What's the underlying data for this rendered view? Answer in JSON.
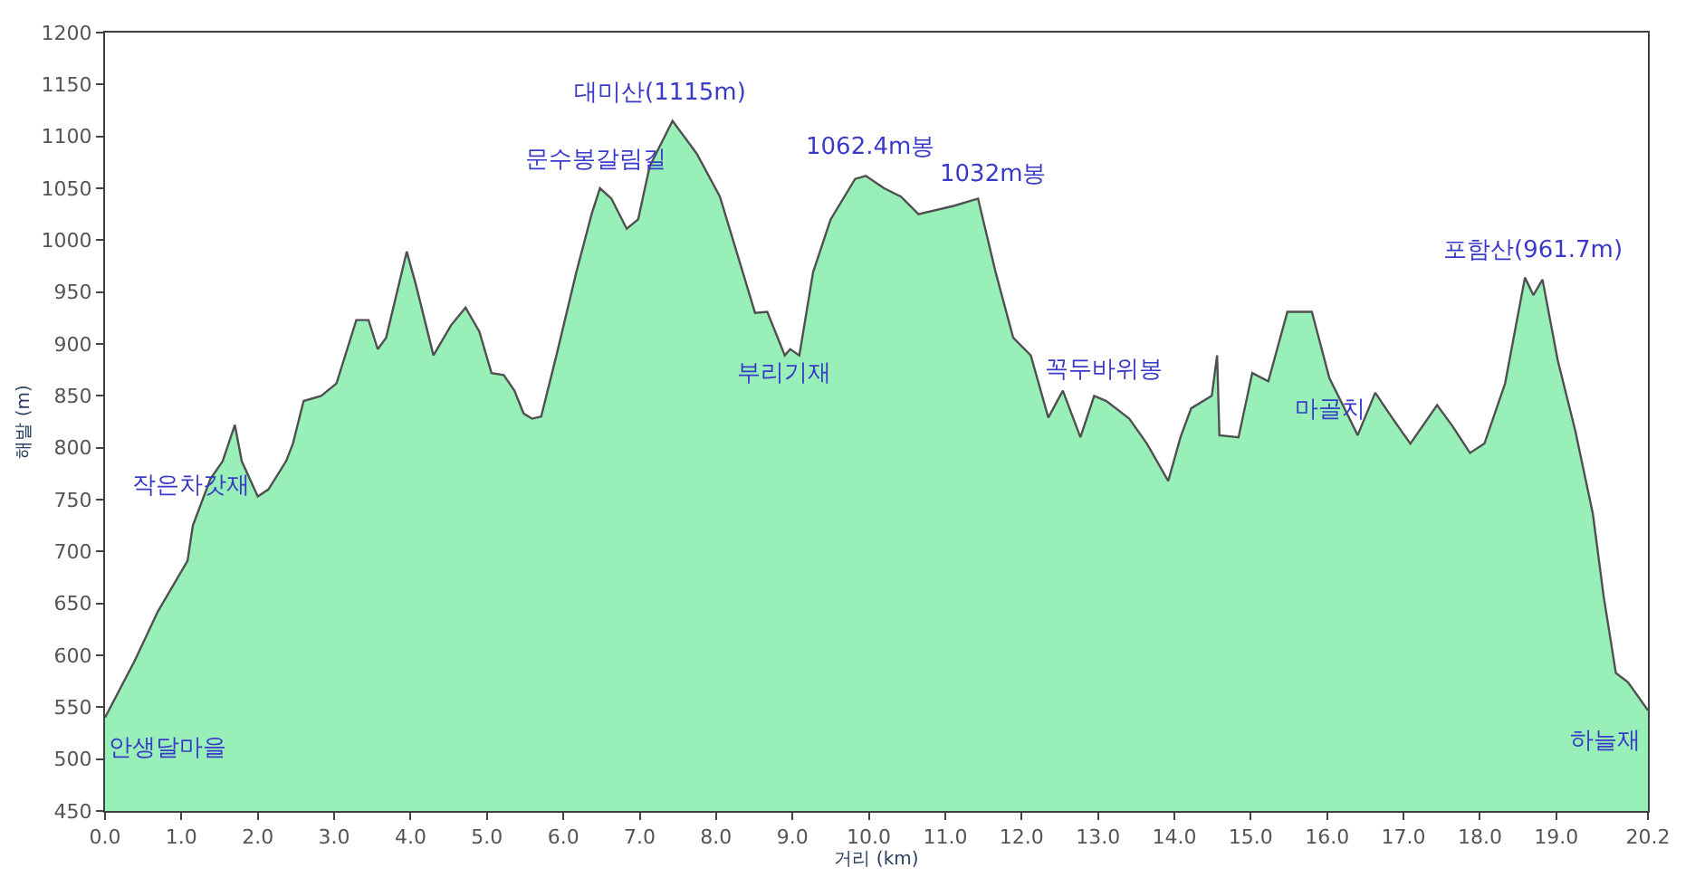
{
  "chart_data": {
    "type": "area",
    "xlabel": "거리 (km)",
    "ylabel": "해발 (m)",
    "x": [
      0.0,
      0.39,
      0.69,
      1.08,
      1.15,
      1.38,
      1.54,
      1.7,
      1.79,
      2.0,
      2.14,
      2.37,
      2.46,
      2.6,
      2.83,
      3.03,
      3.29,
      3.45,
      3.57,
      3.68,
      3.95,
      4.07,
      4.3,
      4.53,
      4.72,
      4.9,
      5.06,
      5.22,
      5.36,
      5.48,
      5.59,
      5.71,
      5.91,
      6.17,
      6.37,
      6.48,
      6.63,
      6.83,
      6.98,
      7.13,
      7.43,
      7.75,
      8.05,
      8.35,
      8.51,
      8.67,
      8.9,
      8.97,
      9.09,
      9.27,
      9.5,
      9.82,
      9.96,
      10.2,
      10.42,
      10.65,
      11.11,
      11.43,
      11.66,
      11.89,
      12.12,
      12.35,
      12.54,
      12.77,
      12.95,
      13.11,
      13.41,
      13.64,
      13.92,
      14.08,
      14.22,
      14.49,
      14.56,
      14.59,
      14.84,
      15.02,
      15.23,
      15.48,
      15.8,
      16.03,
      16.26,
      16.4,
      16.63,
      16.86,
      17.09,
      17.44,
      17.64,
      17.87,
      18.06,
      18.33,
      18.59,
      18.7,
      18.82,
      19.02,
      19.25,
      19.48,
      19.62,
      19.78,
      19.94,
      20.2
    ],
    "series": [
      {
        "color": "#98f0b8",
        "values": [
          540,
          595,
          642,
          691,
          725,
          770,
          787,
          822,
          787,
          753,
          760,
          787,
          804,
          845,
          850,
          862,
          923,
          923,
          895,
          906,
          989,
          957,
          889,
          918,
          935,
          912,
          872,
          870,
          855,
          833,
          828,
          830,
          889,
          969,
          1025,
          1050,
          1040,
          1011,
          1020,
          1071,
          1115,
          1083,
          1042,
          969,
          930,
          931,
          889,
          895,
          889,
          969,
          1020,
          1059,
          1062,
          1050,
          1042,
          1025,
          1033,
          1040,
          969,
          906,
          889,
          829,
          855,
          810,
          850,
          845,
          828,
          804,
          768,
          810,
          838,
          850,
          889,
          812,
          810,
          872,
          864,
          931,
          931,
          867,
          833,
          812,
          853,
          828,
          804,
          841,
          821,
          795,
          804,
          862,
          964,
          947,
          962,
          884,
          816,
          736,
          657,
          583,
          574,
          547
        ]
      }
    ],
    "xlim": [
      0,
      20.2
    ],
    "xticks": [
      {
        "value": 0,
        "label": "0.0"
      },
      {
        "value": 1,
        "label": "1.0"
      },
      {
        "value": 2,
        "label": "2.0"
      },
      {
        "value": 3,
        "label": "3.0"
      },
      {
        "value": 4,
        "label": "4.0"
      },
      {
        "value": 5,
        "label": "5.0"
      },
      {
        "value": 6,
        "label": "6.0"
      },
      {
        "value": 7,
        "label": "7.0"
      },
      {
        "value": 8,
        "label": "8.0"
      },
      {
        "value": 9,
        "label": "9.0"
      },
      {
        "value": 10,
        "label": "10.0"
      },
      {
        "value": 11,
        "label": "11.0"
      },
      {
        "value": 12,
        "label": "12.0"
      },
      {
        "value": 13,
        "label": "13.0"
      },
      {
        "value": 14,
        "label": "14.0"
      },
      {
        "value": 15,
        "label": "15.0"
      },
      {
        "value": 16,
        "label": "16.0"
      },
      {
        "value": 17,
        "label": "17.0"
      },
      {
        "value": 18,
        "label": "18.0"
      },
      {
        "value": 19,
        "label": "19.0"
      },
      {
        "value": 20.2,
        "label": "20.2"
      }
    ],
    "ylim": [
      450,
      1200
    ],
    "yticks": [
      450,
      500,
      550,
      600,
      650,
      700,
      750,
      800,
      850,
      900,
      950,
      1000,
      1050,
      1100,
      1150,
      1200
    ],
    "annotations": [
      {
        "text": "안생달마을",
        "x": 0.0,
        "y": 540
      },
      {
        "text": "작은차갓재",
        "x": 2.0,
        "y": 753
      },
      {
        "text": "문수봉갈림길",
        "x": 6.48,
        "y": 1050
      },
      {
        "text": "대미산(1115m)",
        "x": 7.43,
        "y": 1115
      },
      {
        "text": "부리기재",
        "x": 8.97,
        "y": 895
      },
      {
        "text": "1062.4m봉",
        "x": 9.96,
        "y": 1062
      },
      {
        "text": "1032m봉",
        "x": 11.43,
        "y": 1040
      },
      {
        "text": "꼭두바위봉",
        "x": 12.54,
        "y": 855
      },
      {
        "text": "마골치",
        "x": 16.4,
        "y": 812
      },
      {
        "text": "포함산(961.7m)",
        "x": 18.82,
        "y": 962
      },
      {
        "text": "하늘재",
        "x": 20.2,
        "y": 547
      }
    ]
  }
}
